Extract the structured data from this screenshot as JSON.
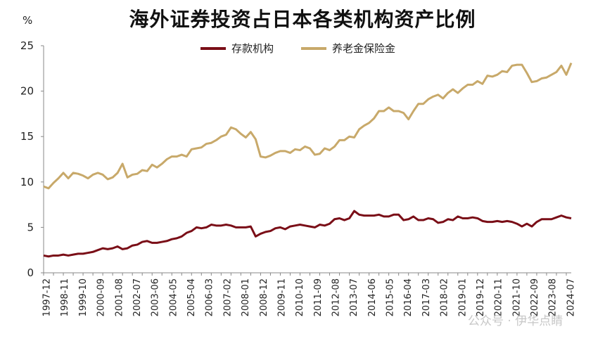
{
  "chart_data": {
    "type": "line",
    "title": "海外证券投资占日本各类机构资产比例",
    "ylabel": "%",
    "ylim": [
      0,
      25
    ],
    "yticks": [
      0,
      5,
      10,
      15,
      20,
      25
    ],
    "grid": false,
    "legend_position": "top-center",
    "x_tick_labels": [
      "1997-12",
      "1998-11",
      "1999-10",
      "2000-09",
      "2001-08",
      "2002-07",
      "2003-06",
      "2004-05",
      "2005-04",
      "2006-03",
      "2007-02",
      "2008-01",
      "2008-12",
      "2009-11",
      "2010-10",
      "2011-09",
      "2012-08",
      "2013-07",
      "2014-06",
      "2015-05",
      "2016-04",
      "2017-03",
      "2018-02",
      "2019-01",
      "2019-12",
      "2020-11",
      "2021-10",
      "2022-09",
      "2023-08",
      "2024-07"
    ],
    "series": [
      {
        "name": "存款机构",
        "color": "#7a0e17",
        "values": [
          1.9,
          1.8,
          1.9,
          1.9,
          2.0,
          1.9,
          2.0,
          2.1,
          2.1,
          2.2,
          2.3,
          2.5,
          2.7,
          2.6,
          2.7,
          2.9,
          2.6,
          2.7,
          3.0,
          3.1,
          3.4,
          3.5,
          3.3,
          3.3,
          3.4,
          3.5,
          3.7,
          3.8,
          4.0,
          4.4,
          4.6,
          5.0,
          4.9,
          5.0,
          5.3,
          5.2,
          5.2,
          5.3,
          5.2,
          5.0,
          5.0,
          5.0,
          5.1,
          4.0,
          4.3,
          4.5,
          4.6,
          4.9,
          5.0,
          4.8,
          5.1,
          5.2,
          5.3,
          5.2,
          5.1,
          5.0,
          5.3,
          5.2,
          5.4,
          5.9,
          6.0,
          5.8,
          6.0,
          6.8,
          6.4,
          6.3,
          6.3,
          6.3,
          6.4,
          6.2,
          6.2,
          6.4,
          6.4,
          5.8,
          5.9,
          6.2,
          5.8,
          5.8,
          6.0,
          5.9,
          5.5,
          5.6,
          5.9,
          5.8,
          6.2,
          6.0,
          6.0,
          6.1,
          6.0,
          5.7,
          5.6,
          5.6,
          5.7,
          5.6,
          5.7,
          5.6,
          5.4,
          5.1,
          5.4,
          5.1,
          5.6,
          5.9,
          5.9,
          5.9,
          6.1,
          6.3,
          6.1,
          6.0
        ]
      },
      {
        "name": "养老金保险金",
        "color": "#c8a96a",
        "values": [
          9.5,
          9.3,
          9.9,
          10.4,
          11.0,
          10.4,
          11.0,
          10.9,
          10.7,
          10.4,
          10.8,
          11.0,
          10.8,
          10.3,
          10.5,
          11.0,
          12.0,
          10.5,
          10.8,
          10.9,
          11.3,
          11.2,
          11.9,
          11.6,
          12.0,
          12.5,
          12.8,
          12.8,
          13.0,
          12.8,
          13.6,
          13.7,
          13.8,
          14.2,
          14.3,
          14.6,
          15.0,
          15.2,
          16.0,
          15.8,
          15.3,
          14.9,
          15.5,
          14.7,
          12.8,
          12.7,
          12.9,
          13.2,
          13.4,
          13.4,
          13.2,
          13.6,
          13.5,
          13.9,
          13.7,
          13.0,
          13.1,
          13.7,
          13.5,
          13.9,
          14.6,
          14.6,
          15.0,
          14.9,
          15.8,
          16.2,
          16.5,
          17.0,
          17.8,
          17.8,
          18.2,
          17.8,
          17.8,
          17.6,
          16.9,
          17.8,
          18.6,
          18.6,
          19.1,
          19.4,
          19.6,
          19.2,
          19.8,
          20.2,
          19.8,
          20.3,
          20.7,
          20.7,
          21.1,
          20.8,
          21.7,
          21.6,
          21.8,
          22.2,
          22.1,
          22.8,
          22.9,
          22.9,
          22.0,
          21.0,
          21.1,
          21.4,
          21.5,
          21.8,
          22.1,
          22.8,
          21.8,
          23.1
        ]
      }
    ],
    "watermark": "公众号 · 伊华点睛"
  }
}
